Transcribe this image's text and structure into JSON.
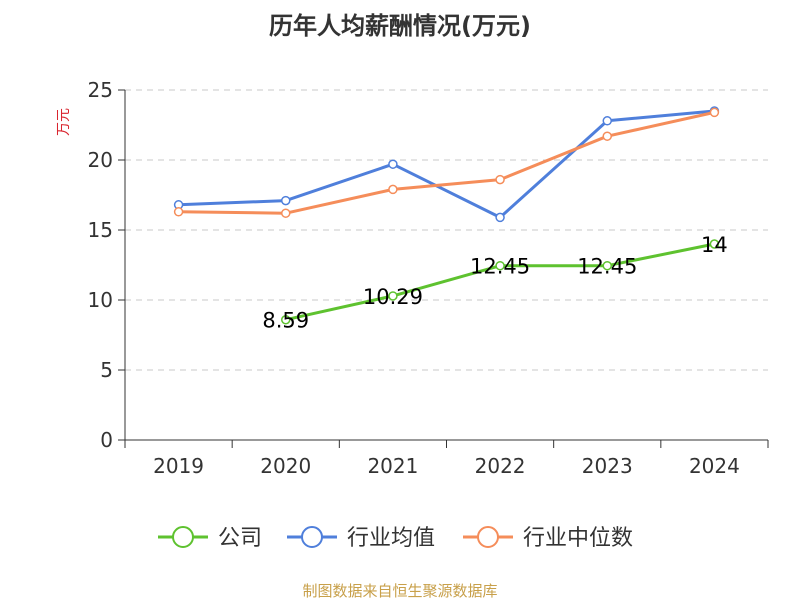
{
  "chart_data": {
    "type": "line",
    "title": "历年人均薪酬情况(万元)",
    "ylabel": "万元",
    "xlabel": "",
    "categories": [
      "2019",
      "2020",
      "2021",
      "2022",
      "2023",
      "2024"
    ],
    "ylim": [
      0,
      25
    ],
    "yticks": [
      0,
      5,
      10,
      15,
      20,
      25
    ],
    "grid": true,
    "legend_position": "bottom",
    "series": [
      {
        "name": "公司",
        "color": "#5ec22f",
        "values": [
          null,
          8.59,
          10.29,
          12.45,
          12.45,
          14
        ],
        "labels": [
          "",
          "8.59",
          "10.29",
          "12.45",
          "12.45",
          "14"
        ]
      },
      {
        "name": "行业均值",
        "color": "#4f7fdb",
        "values": [
          16.8,
          17.1,
          19.7,
          15.9,
          22.8,
          23.5
        ]
      },
      {
        "name": "行业中位数",
        "color": "#f58d5a",
        "values": [
          16.3,
          16.2,
          17.9,
          18.6,
          21.7,
          23.4
        ]
      }
    ]
  },
  "footer": {
    "source": "制图数据来自恒生聚源数据库"
  }
}
